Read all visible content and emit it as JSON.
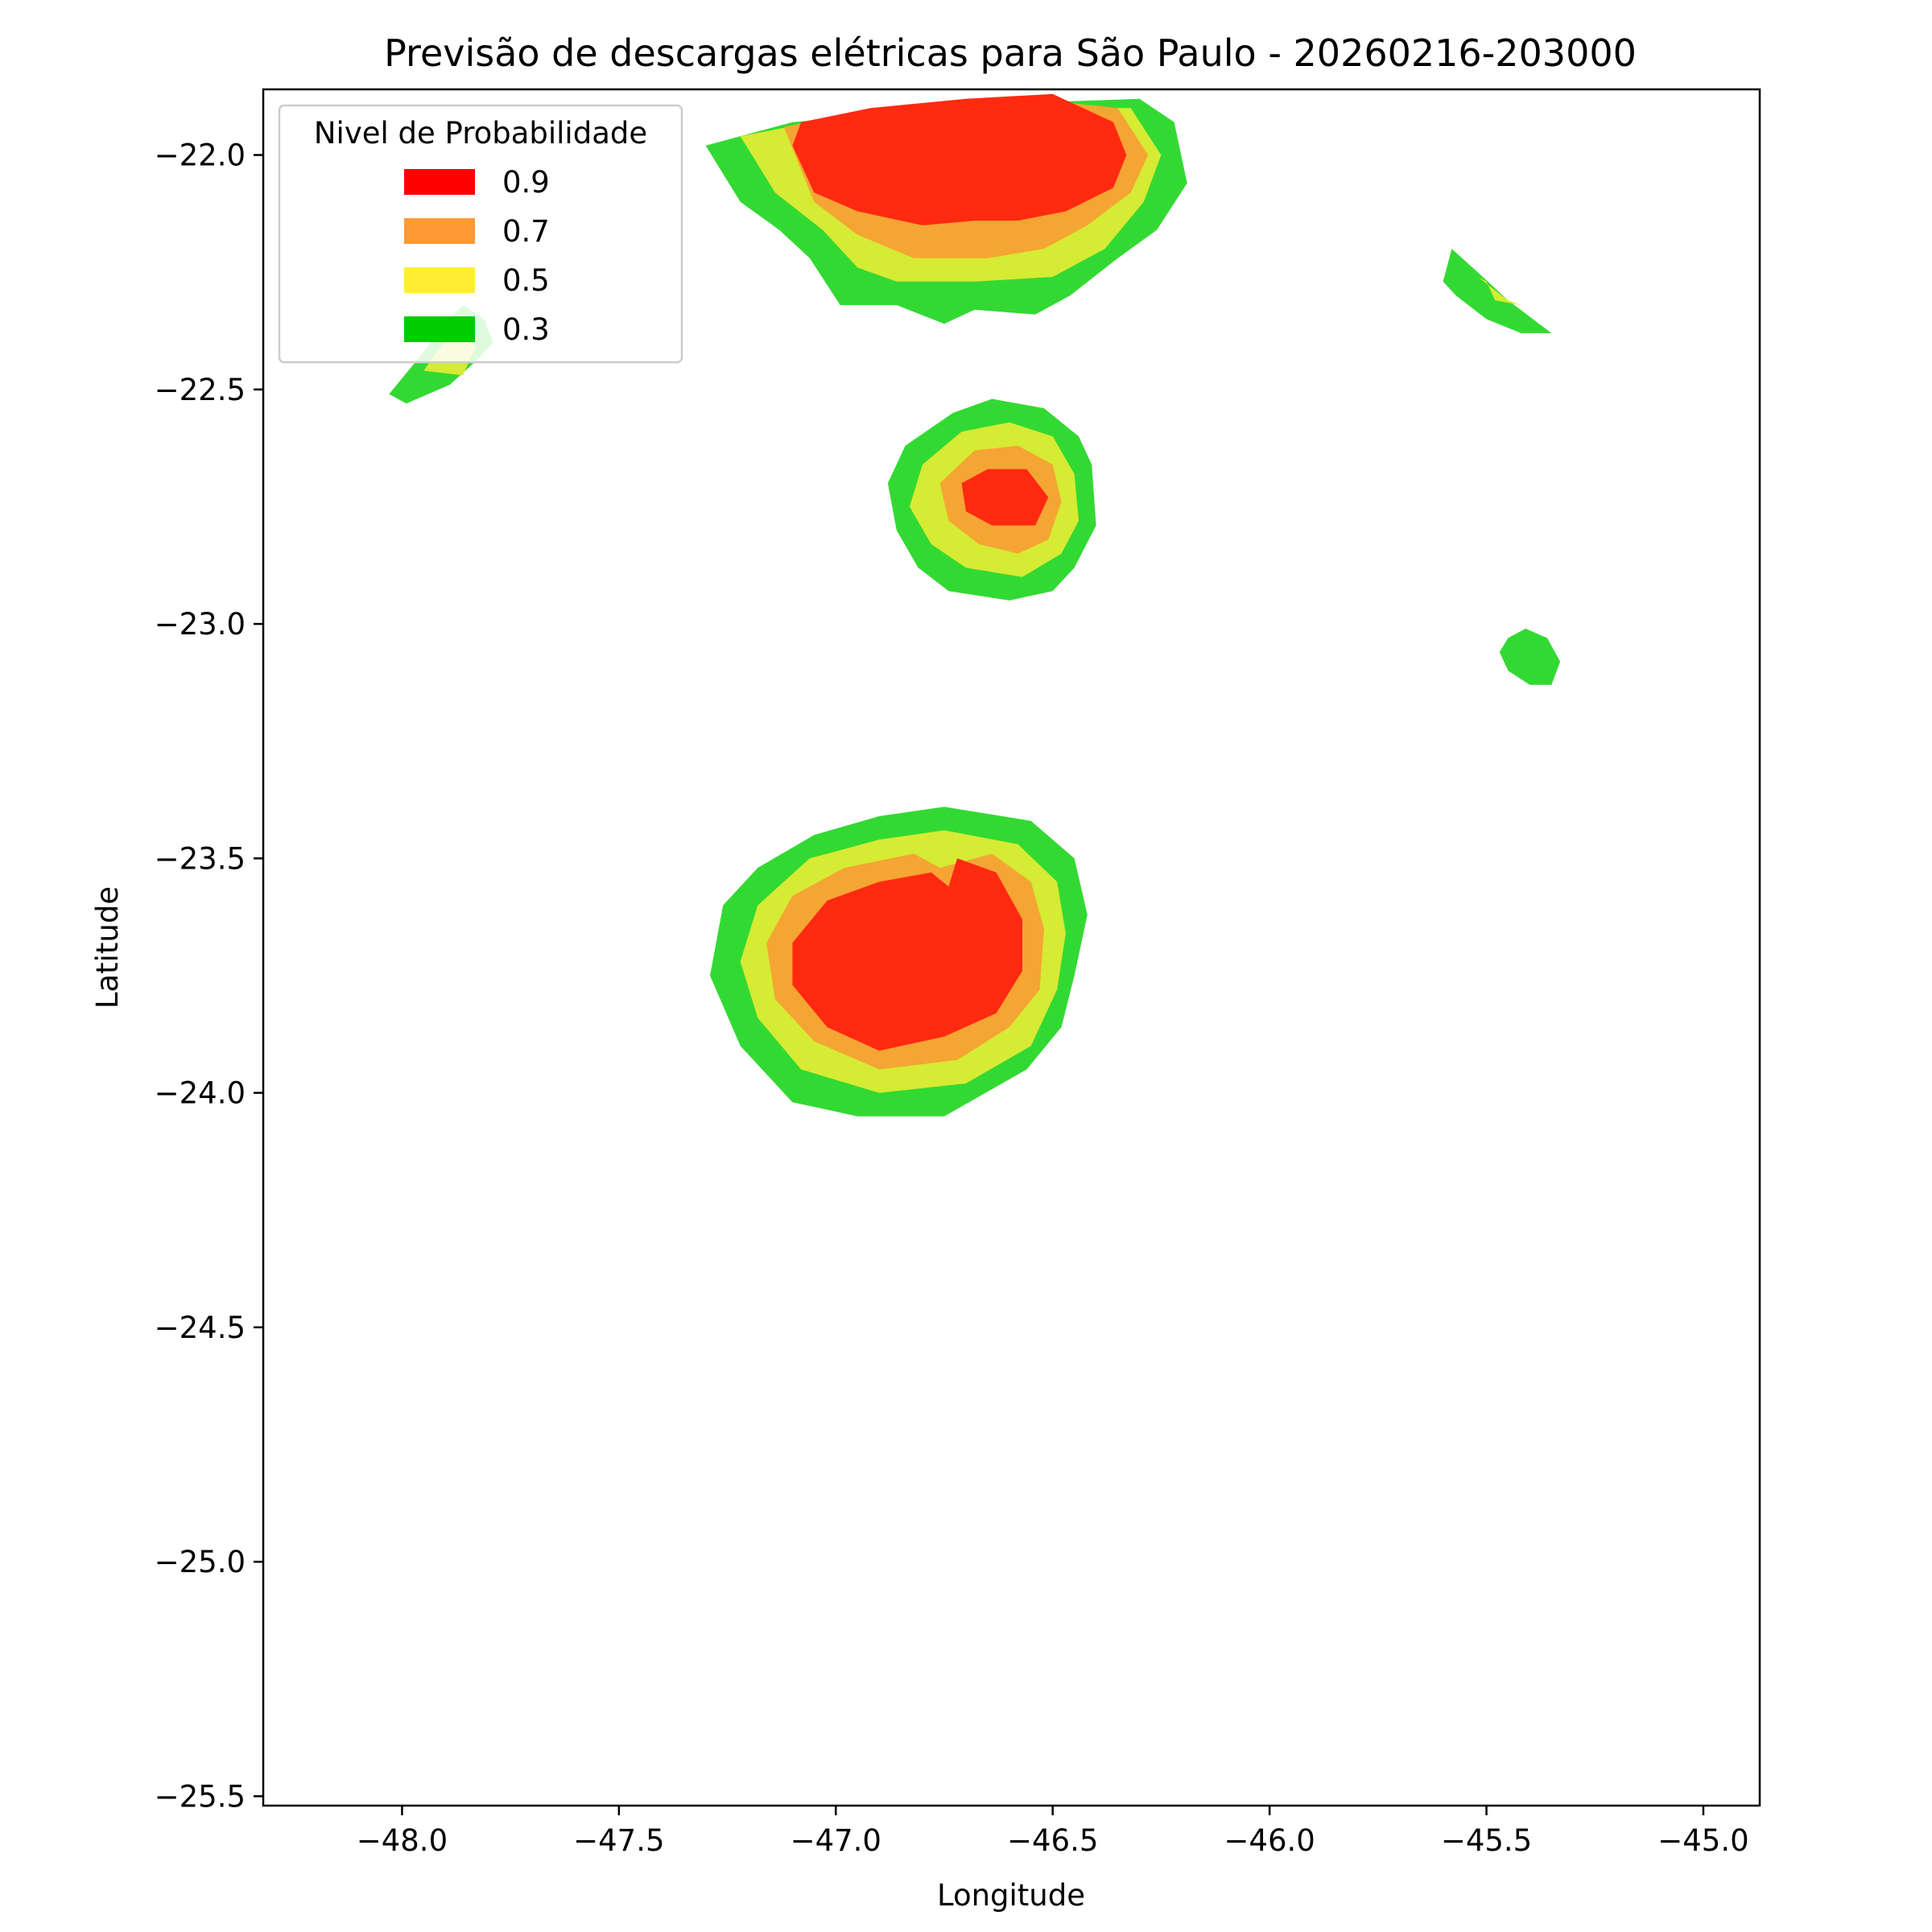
{
  "chart_data": {
    "type": "contour",
    "title": "Previsão de descargas elétricas para São Paulo - 20260216-203000",
    "xlabel": "Longitude",
    "ylabel": "Latitude",
    "xlim": [
      -48.32,
      -44.87
    ],
    "ylim": [
      -25.52,
      -21.86
    ],
    "xticks": [
      -48.0,
      -47.5,
      -47.0,
      -46.5,
      -46.0,
      -45.5,
      -45.0
    ],
    "xtick_labels": [
      "−48.0",
      "−47.5",
      "−47.0",
      "−46.5",
      "−46.0",
      "−45.5",
      "−45.0"
    ],
    "yticks": [
      -22.0,
      -22.5,
      -23.0,
      -23.5,
      -24.0,
      -24.5,
      -25.0,
      -25.5
    ],
    "ytick_labels": [
      "−22.0",
      "−22.5",
      "−23.0",
      "−23.5",
      "−24.0",
      "−24.5",
      "−25.0",
      "−25.5"
    ],
    "grid": false,
    "legend": {
      "title": "Nivel de Probabilidade",
      "placement": "top-left",
      "entries": [
        {
          "label": "0.9",
          "color": "#ff0000"
        },
        {
          "label": "0.7",
          "color": "#ff9933"
        },
        {
          "label": "0.5",
          "color": "#ffee33"
        },
        {
          "label": "0.3",
          "color": "#00cc00"
        }
      ]
    },
    "fill_colors": {
      "0.3": "#33d933",
      "0.5": "#d6eb33",
      "0.7": "#f5a533",
      "0.9": "#ff2a10"
    },
    "regions": [
      {
        "level": "0.3",
        "points": [
          [
            -47.3,
            -21.98
          ],
          [
            -47.1,
            -21.93
          ],
          [
            -46.85,
            -21.91
          ],
          [
            -46.6,
            -21.89
          ],
          [
            -46.3,
            -21.88
          ],
          [
            -46.22,
            -21.93
          ],
          [
            -46.19,
            -22.06
          ],
          [
            -46.26,
            -22.16
          ],
          [
            -46.35,
            -22.22
          ],
          [
            -46.46,
            -22.3
          ],
          [
            -46.54,
            -22.34
          ],
          [
            -46.68,
            -22.33
          ],
          [
            -46.75,
            -22.36
          ],
          [
            -46.86,
            -22.32
          ],
          [
            -46.99,
            -22.32
          ],
          [
            -47.06,
            -22.22
          ],
          [
            -47.13,
            -22.16
          ],
          [
            -47.22,
            -22.1
          ]
        ]
      },
      {
        "level": "0.5",
        "points": [
          [
            -47.22,
            -21.96
          ],
          [
            -47.05,
            -21.93
          ],
          [
            -46.85,
            -21.91
          ],
          [
            -46.6,
            -21.9
          ],
          [
            -46.32,
            -21.9
          ],
          [
            -46.25,
            -22.0
          ],
          [
            -46.29,
            -22.1
          ],
          [
            -46.38,
            -22.2
          ],
          [
            -46.5,
            -22.26
          ],
          [
            -46.68,
            -22.27
          ],
          [
            -46.86,
            -22.27
          ],
          [
            -46.95,
            -22.24
          ],
          [
            -47.03,
            -22.16
          ],
          [
            -47.14,
            -22.08
          ]
        ]
      },
      {
        "level": "0.7",
        "points": [
          [
            -47.12,
            -21.94
          ],
          [
            -46.95,
            -21.91
          ],
          [
            -46.75,
            -21.9
          ],
          [
            -46.55,
            -21.88
          ],
          [
            -46.35,
            -21.9
          ],
          [
            -46.28,
            -22.0
          ],
          [
            -46.32,
            -22.08
          ],
          [
            -46.42,
            -22.15
          ],
          [
            -46.52,
            -22.2
          ],
          [
            -46.65,
            -22.22
          ],
          [
            -46.82,
            -22.22
          ],
          [
            -46.95,
            -22.17
          ],
          [
            -47.05,
            -22.1
          ]
        ]
      },
      {
        "level": "0.9",
        "points": [
          [
            -47.08,
            -21.93
          ],
          [
            -46.92,
            -21.9
          ],
          [
            -46.7,
            -21.88
          ],
          [
            -46.5,
            -21.87
          ],
          [
            -46.36,
            -21.93
          ],
          [
            -46.33,
            -22.0
          ],
          [
            -46.36,
            -22.07
          ],
          [
            -46.47,
            -22.12
          ],
          [
            -46.58,
            -22.14
          ],
          [
            -46.68,
            -22.14
          ],
          [
            -46.8,
            -22.15
          ],
          [
            -46.95,
            -22.12
          ],
          [
            -47.05,
            -22.08
          ],
          [
            -47.1,
            -21.98
          ]
        ]
      },
      {
        "level": "0.3",
        "points": [
          [
            -47.99,
            -22.53
          ],
          [
            -47.89,
            -22.49
          ],
          [
            -47.83,
            -22.44
          ],
          [
            -47.79,
            -22.4
          ],
          [
            -47.81,
            -22.35
          ],
          [
            -47.86,
            -22.32
          ],
          [
            -47.9,
            -22.36
          ],
          [
            -47.95,
            -22.42
          ],
          [
            -48.03,
            -22.51
          ]
        ]
      },
      {
        "level": "0.5",
        "points": [
          [
            -47.95,
            -22.46
          ],
          [
            -47.86,
            -22.47
          ],
          [
            -47.83,
            -22.41
          ],
          [
            -47.87,
            -22.37
          ],
          [
            -47.92,
            -22.42
          ]
        ]
      },
      {
        "level": "0.3",
        "points": [
          [
            -45.58,
            -22.2
          ],
          [
            -45.52,
            -22.25
          ],
          [
            -45.45,
            -22.31
          ],
          [
            -45.35,
            -22.38
          ],
          [
            -45.42,
            -22.38
          ],
          [
            -45.5,
            -22.35
          ],
          [
            -45.57,
            -22.3
          ],
          [
            -45.6,
            -22.27
          ]
        ]
      },
      {
        "level": "0.5",
        "points": [
          [
            -45.52,
            -22.26
          ],
          [
            -45.45,
            -22.31
          ],
          [
            -45.42,
            -22.32
          ],
          [
            -45.48,
            -22.31
          ],
          [
            -45.5,
            -22.27
          ]
        ]
      },
      {
        "level": "0.3",
        "points": [
          [
            -45.41,
            -23.01
          ],
          [
            -45.36,
            -23.03
          ],
          [
            -45.33,
            -23.08
          ],
          [
            -45.35,
            -23.13
          ],
          [
            -45.4,
            -23.13
          ],
          [
            -45.45,
            -23.1
          ],
          [
            -45.47,
            -23.06
          ],
          [
            -45.45,
            -23.03
          ]
        ]
      },
      {
        "level": "0.3",
        "points": [
          [
            -46.73,
            -22.55
          ],
          [
            -46.64,
            -22.52
          ],
          [
            -46.52,
            -22.54
          ],
          [
            -46.44,
            -22.6
          ],
          [
            -46.41,
            -22.66
          ],
          [
            -46.4,
            -22.79
          ],
          [
            -46.45,
            -22.88
          ],
          [
            -46.5,
            -22.93
          ],
          [
            -46.6,
            -22.95
          ],
          [
            -46.74,
            -22.93
          ],
          [
            -46.81,
            -22.88
          ],
          [
            -46.86,
            -22.8
          ],
          [
            -46.88,
            -22.7
          ],
          [
            -46.84,
            -22.62
          ]
        ]
      },
      {
        "level": "0.5",
        "points": [
          [
            -46.71,
            -22.59
          ],
          [
            -46.6,
            -22.57
          ],
          [
            -46.5,
            -22.6
          ],
          [
            -46.45,
            -22.68
          ],
          [
            -46.44,
            -22.78
          ],
          [
            -46.48,
            -22.85
          ],
          [
            -46.57,
            -22.9
          ],
          [
            -46.7,
            -22.88
          ],
          [
            -46.78,
            -22.83
          ],
          [
            -46.83,
            -22.75
          ],
          [
            -46.8,
            -22.66
          ]
        ]
      },
      {
        "level": "0.7",
        "points": [
          [
            -46.68,
            -22.63
          ],
          [
            -46.58,
            -22.62
          ],
          [
            -46.5,
            -22.66
          ],
          [
            -46.48,
            -22.74
          ],
          [
            -46.51,
            -22.82
          ],
          [
            -46.58,
            -22.85
          ],
          [
            -46.67,
            -22.83
          ],
          [
            -46.74,
            -22.78
          ],
          [
            -46.76,
            -22.7
          ]
        ]
      },
      {
        "level": "0.9",
        "points": [
          [
            -46.65,
            -22.67
          ],
          [
            -46.56,
            -22.67
          ],
          [
            -46.51,
            -22.73
          ],
          [
            -46.54,
            -22.79
          ],
          [
            -46.64,
            -22.79
          ],
          [
            -46.7,
            -22.76
          ],
          [
            -46.71,
            -22.7
          ]
        ]
      },
      {
        "level": "0.3",
        "points": [
          [
            -46.75,
            -23.39
          ],
          [
            -46.55,
            -23.42
          ],
          [
            -46.45,
            -23.5
          ],
          [
            -46.42,
            -23.62
          ],
          [
            -46.45,
            -23.75
          ],
          [
            -46.48,
            -23.86
          ],
          [
            -46.56,
            -23.95
          ],
          [
            -46.75,
            -24.05
          ],
          [
            -46.95,
            -24.05
          ],
          [
            -47.1,
            -24.02
          ],
          [
            -47.22,
            -23.9
          ],
          [
            -47.29,
            -23.75
          ],
          [
            -47.26,
            -23.6
          ],
          [
            -47.18,
            -23.52
          ],
          [
            -47.05,
            -23.45
          ],
          [
            -46.9,
            -23.41
          ]
        ]
      },
      {
        "level": "0.5",
        "points": [
          [
            -46.75,
            -23.44
          ],
          [
            -46.58,
            -23.47
          ],
          [
            -46.49,
            -23.55
          ],
          [
            -46.47,
            -23.66
          ],
          [
            -46.49,
            -23.78
          ],
          [
            -46.55,
            -23.9
          ],
          [
            -46.7,
            -23.98
          ],
          [
            -46.9,
            -24.0
          ],
          [
            -47.08,
            -23.95
          ],
          [
            -47.18,
            -23.84
          ],
          [
            -47.22,
            -23.72
          ],
          [
            -47.18,
            -23.6
          ],
          [
            -47.06,
            -23.5
          ],
          [
            -46.9,
            -23.46
          ]
        ]
      },
      {
        "level": "0.7",
        "points": [
          [
            -46.82,
            -23.49
          ],
          [
            -46.76,
            -23.52
          ],
          [
            -46.64,
            -23.49
          ],
          [
            -46.55,
            -23.55
          ],
          [
            -46.52,
            -23.65
          ],
          [
            -46.53,
            -23.78
          ],
          [
            -46.6,
            -23.86
          ],
          [
            -46.72,
            -23.93
          ],
          [
            -46.9,
            -23.95
          ],
          [
            -47.05,
            -23.89
          ],
          [
            -47.14,
            -23.8
          ],
          [
            -47.16,
            -23.68
          ],
          [
            -47.1,
            -23.58
          ],
          [
            -46.98,
            -23.52
          ]
        ]
      },
      {
        "level": "0.9",
        "points": [
          [
            -46.78,
            -23.53
          ],
          [
            -46.74,
            -23.56
          ],
          [
            -46.72,
            -23.5
          ],
          [
            -46.63,
            -23.53
          ],
          [
            -46.57,
            -23.63
          ],
          [
            -46.57,
            -23.74
          ],
          [
            -46.63,
            -23.83
          ],
          [
            -46.75,
            -23.88
          ],
          [
            -46.9,
            -23.91
          ],
          [
            -47.02,
            -23.86
          ],
          [
            -47.1,
            -23.77
          ],
          [
            -47.1,
            -23.68
          ],
          [
            -47.02,
            -23.59
          ],
          [
            -46.9,
            -23.55
          ]
        ]
      }
    ]
  }
}
